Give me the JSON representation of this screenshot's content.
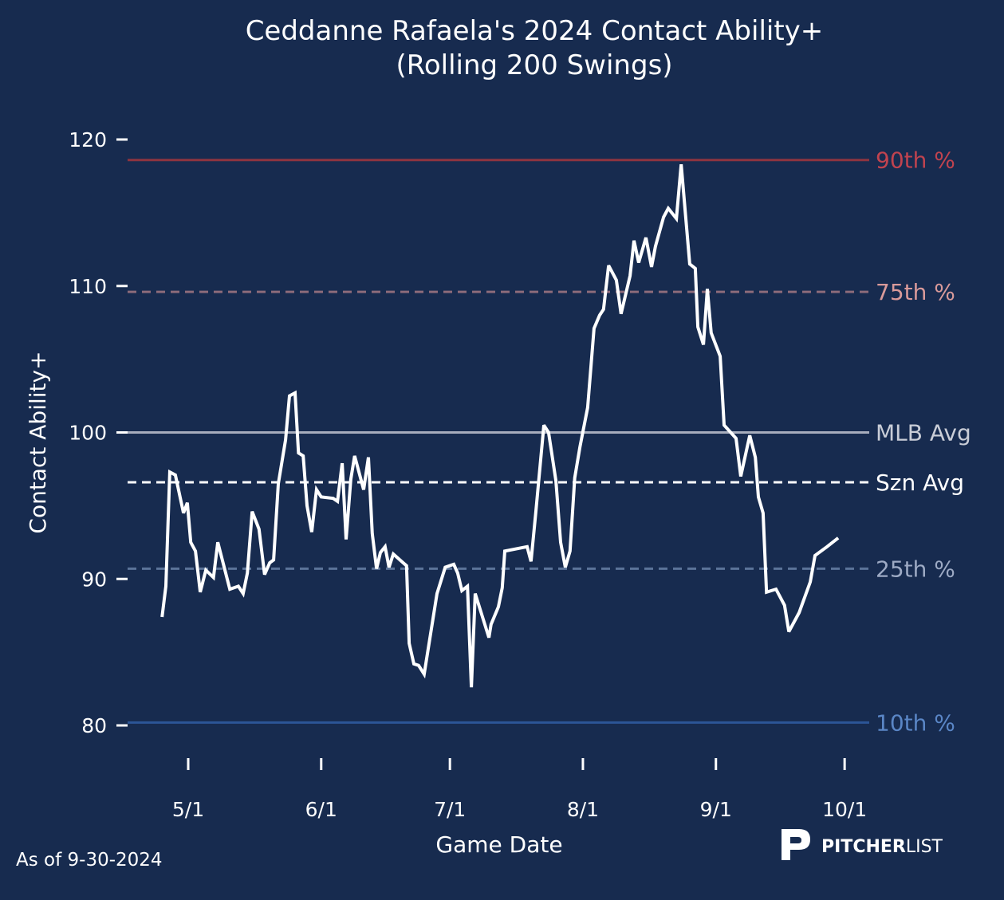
{
  "chart_data": {
    "type": "line",
    "title": "Ceddanne Rafaela's 2024 Contact Ability+",
    "subtitle": "(Rolling 200 Swings)",
    "xlabel": "Game Date",
    "ylabel": "Contact Ability+",
    "ylim": [
      77,
      124
    ],
    "yticks": [
      80,
      90,
      100,
      110,
      120
    ],
    "x_unit": "days since May 1, 2024",
    "xlim": [
      -11,
      159
    ],
    "xticks": [
      {
        "label": "5/1",
        "day": 0
      },
      {
        "label": "6/1",
        "day": 31
      },
      {
        "label": "7/1",
        "day": 61
      },
      {
        "label": "8/1",
        "day": 92
      },
      {
        "label": "9/1",
        "day": 123
      },
      {
        "label": "10/1",
        "day": 153
      }
    ],
    "grid": false,
    "reference_lines": [
      {
        "label": "90th %",
        "value": 118.6,
        "style": "solid",
        "line_color": "#8e3440",
        "text_color": "#c0434f"
      },
      {
        "label": "75th %",
        "value": 109.6,
        "style": "dashed",
        "line_color": "#8c6b7a",
        "text_color": "#d99a9a"
      },
      {
        "label": "MLB Avg",
        "value": 100.0,
        "style": "solid",
        "line_color": "#a7adbd",
        "text_color": "#c9cdd7"
      },
      {
        "label": "Szn Avg",
        "value": 96.6,
        "style": "dashed",
        "line_color": "#ffffff",
        "text_color": "#ffffff"
      },
      {
        "label": "25th %",
        "value": 90.7,
        "style": "dashed",
        "line_color": "#5b7499",
        "text_color": "#9daac4"
      },
      {
        "label": "10th %",
        "value": 80.2,
        "style": "solid",
        "line_color": "#2c5597",
        "text_color": "#5a86c6"
      }
    ],
    "series": [
      {
        "name": "Contact Ability+",
        "color": "#ffffff",
        "x": [
          -6.1,
          -5.2,
          -4.3,
          -3.0,
          -1.1,
          -0.2,
          0.6,
          1.7,
          2.8,
          4.1,
          5.9,
          6.9,
          9.7,
          11.7,
          12.8,
          13.8,
          14.9,
          16.5,
          17.8,
          19.0,
          19.9,
          21.0,
          22.7,
          23.6,
          24.9,
          25.7,
          26.8,
          27.7,
          28.8,
          29.9,
          31.0,
          33.8,
          34.8,
          35.9,
          36.8,
          37.9,
          38.8,
          40.9,
          42.0,
          42.9,
          43.9,
          44.8,
          45.9,
          46.8,
          47.8,
          50.9,
          51.5,
          52.6,
          53.7,
          55.0,
          58.0,
          59.9,
          61.9,
          62.8,
          63.8,
          65.1,
          66.0,
          66.9,
          70.1,
          70.6,
          72.3,
          73.2,
          73.8,
          79.0,
          79.9,
          81.0,
          82.9,
          84.0,
          85.7,
          86.8,
          87.9,
          89.0,
          90.1,
          91.3,
          93.1,
          94.6,
          95.9,
          96.8,
          98.0,
          99.8,
          100.9,
          103.0,
          103.9,
          105.0,
          106.7,
          108.0,
          108.9,
          110.8,
          111.9,
          113.8,
          114.9,
          116.9,
          118.2,
          118.8,
          120.1,
          121.0,
          121.9,
          124.0,
          124.9,
          127.7,
          128.8,
          130.9,
          132.2,
          132.9,
          134.0,
          134.8,
          137.0,
          139.0,
          140.0,
          142.4,
          145.0,
          146.1,
          148.9,
          151.5
        ],
        "y": [
          87.4,
          89.5,
          97.3,
          97.1,
          94.5,
          95.2,
          92.5,
          91.9,
          89.1,
          90.6,
          90.1,
          92.5,
          89.3,
          89.5,
          89.0,
          90.4,
          94.6,
          93.4,
          90.3,
          91.1,
          91.3,
          96.5,
          99.5,
          102.5,
          102.7,
          98.6,
          98.4,
          95.0,
          93.2,
          96.1,
          95.6,
          95.5,
          95.3,
          97.9,
          92.7,
          96.8,
          98.4,
          96.1,
          98.3,
          93.1,
          90.7,
          91.8,
          92.2,
          90.8,
          91.7,
          90.9,
          85.6,
          84.2,
          84.1,
          83.5,
          89.0,
          90.8,
          91.0,
          90.4,
          89.2,
          89.5,
          82.6,
          89.0,
          86.0,
          86.9,
          88.1,
          89.4,
          91.9,
          92.2,
          91.2,
          94.5,
          100.5,
          100.0,
          96.7,
          92.5,
          90.8,
          91.9,
          96.9,
          99.0,
          101.7,
          107.1,
          108.0,
          108.4,
          111.4,
          110.4,
          108.1,
          110.7,
          113.1,
          111.6,
          113.3,
          111.3,
          112.7,
          114.7,
          115.3,
          114.6,
          118.3,
          111.5,
          111.2,
          107.2,
          106.0,
          109.8,
          106.8,
          105.2,
          100.5,
          99.6,
          97.0,
          99.8,
          98.3,
          95.6,
          94.5,
          89.1,
          89.3,
          88.2,
          86.4,
          87.7,
          89.8,
          91.6,
          92.2,
          92.8
        ]
      }
    ]
  },
  "footer": {
    "as_of": "As of 9-30-2024"
  },
  "logo": {
    "text_bold": "PITCHER",
    "text_light": "LIST"
  }
}
